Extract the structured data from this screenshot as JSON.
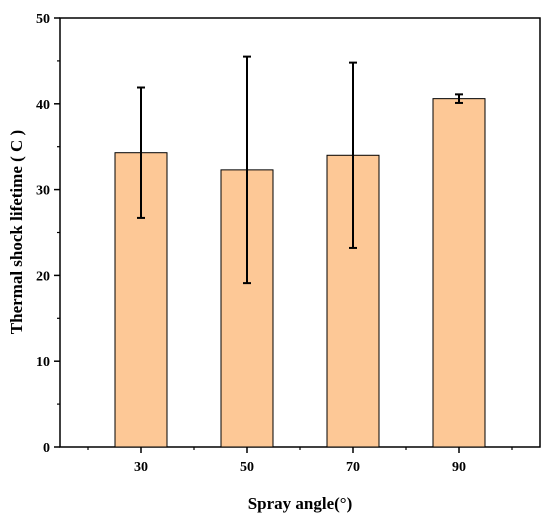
{
  "chart_data": {
    "type": "bar",
    "title": "",
    "xlabel": "Spray angle(°)",
    "ylabel": "Thermal shock lifetime ( C )",
    "categories": [
      "30",
      "50",
      "70",
      "90"
    ],
    "values": [
      34.3,
      32.3,
      34.0,
      40.6
    ],
    "errors": [
      7.6,
      13.2,
      10.8,
      0.5
    ],
    "ylim": [
      0,
      50
    ],
    "yticks": [
      "0",
      "10",
      "20",
      "30",
      "40",
      "50"
    ],
    "bar_color": "#fdc896",
    "bar_edge_color": "#000000",
    "grid": false,
    "legend": "none"
  }
}
